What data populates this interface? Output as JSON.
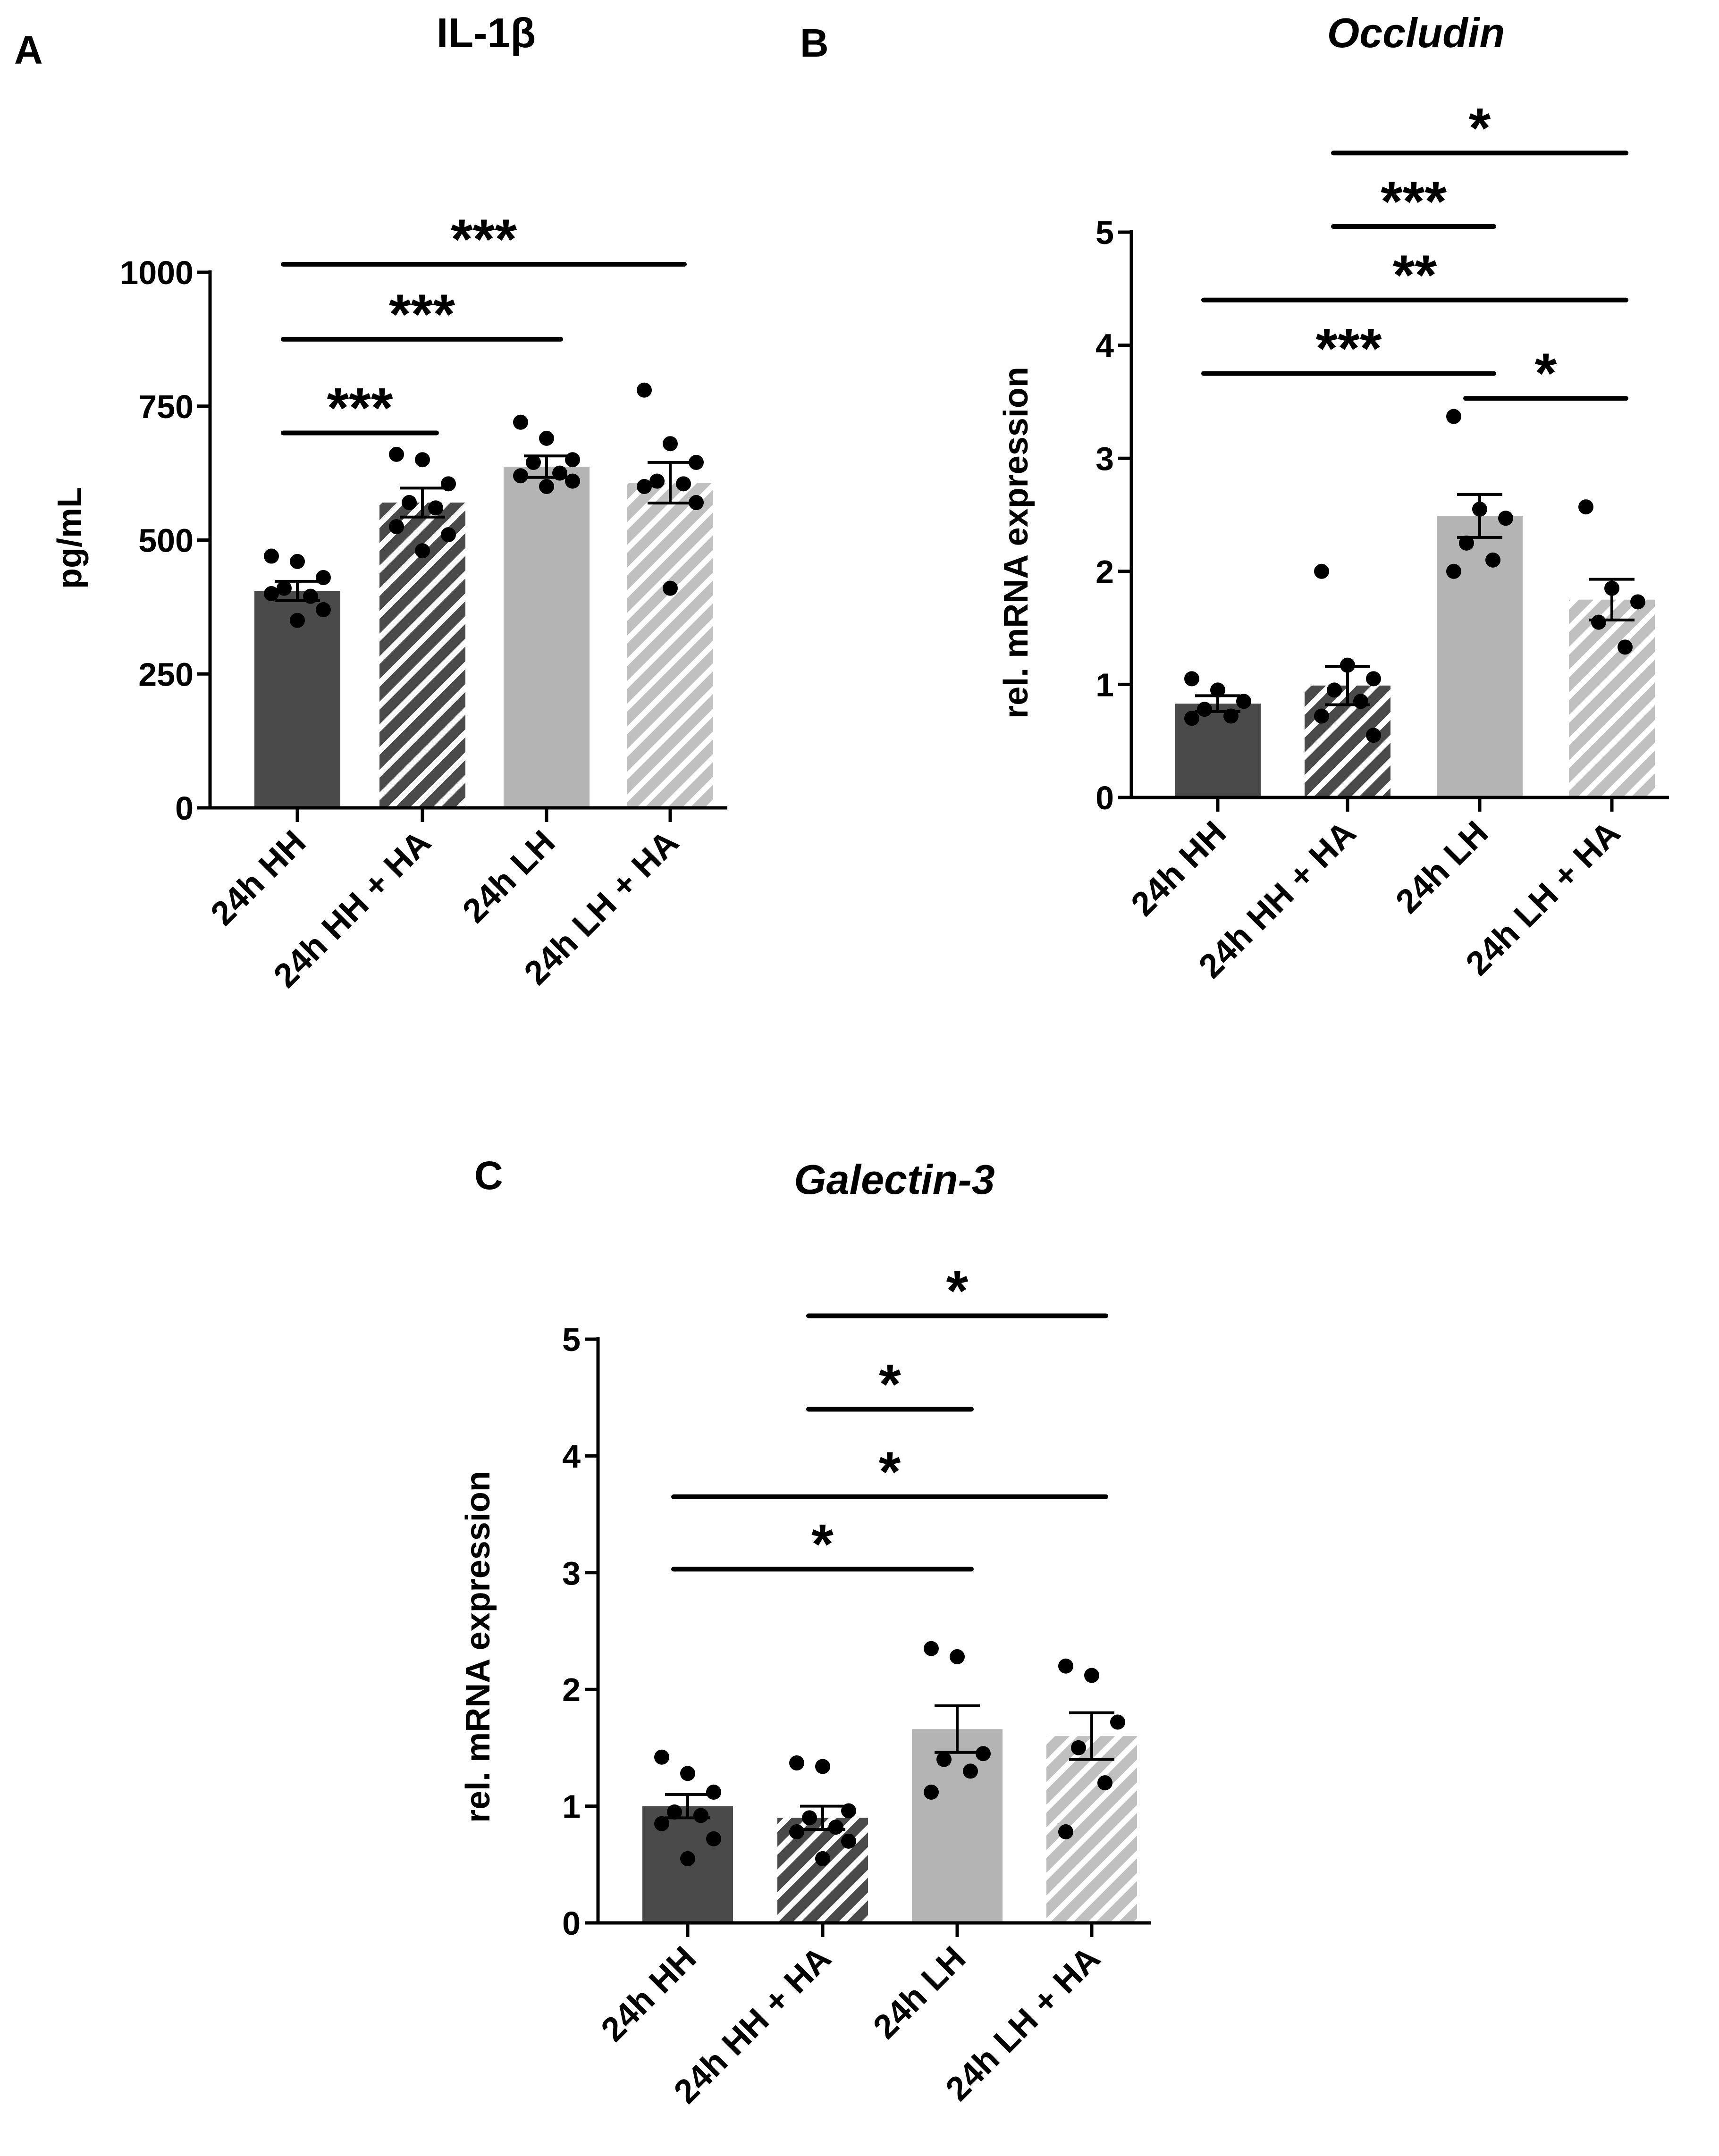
{
  "colors": {
    "hh": "#4a4a4a",
    "hh_ha_stripe": "#4a4a4a",
    "lh": "#b4b4b4",
    "lh_ha_stripe": "#c0c0c0",
    "ink": "#000000",
    "background": "#ffffff"
  },
  "chart_data": [
    {
      "panel": "A",
      "type": "bar",
      "title": "IL-1β",
      "title_italic": false,
      "xlabel": "",
      "ylabel": "pg/mL",
      "ylim": [
        0,
        1000
      ],
      "yticks": [
        0,
        250,
        500,
        750,
        1000
      ],
      "categories": [
        "24h HH",
        "24h HH + HA",
        "24h LH",
        "24h LH + HA"
      ],
      "fills": [
        "solid-dark",
        "hatched-dark",
        "solid-light",
        "hatched-light"
      ],
      "values": [
        405,
        570,
        637,
        607
      ],
      "sem": [
        18,
        27,
        20,
        38
      ],
      "points": [
        [
          470,
          460,
          430,
          410,
          395,
          400,
          370,
          350
        ],
        [
          660,
          650,
          605,
          570,
          560,
          525,
          510,
          480
        ],
        [
          720,
          690,
          650,
          645,
          625,
          620,
          610,
          600
        ],
        [
          780,
          680,
          645,
          610,
          605,
          600,
          570,
          410
        ]
      ],
      "significance": [
        {
          "from": 0,
          "to": 1,
          "label": "***",
          "y": 700
        },
        {
          "from": 0,
          "to": 2,
          "label": "***",
          "y": 875
        },
        {
          "from": 0,
          "to": 3,
          "label": "***",
          "y": 1015
        }
      ]
    },
    {
      "panel": "B",
      "type": "bar",
      "title": "Occludin",
      "title_italic": true,
      "xlabel": "",
      "ylabel": "rel. mRNA expression",
      "ylim": [
        0,
        5
      ],
      "yticks": [
        0,
        1,
        2,
        3,
        4,
        5
      ],
      "categories": [
        "24h HH",
        "24h HH + HA",
        "24h LH",
        "24h LH + HA"
      ],
      "fills": [
        "solid-dark",
        "hatched-dark",
        "solid-light",
        "hatched-light"
      ],
      "values": [
        0.83,
        0.99,
        2.49,
        1.75
      ],
      "sem": [
        0.07,
        0.17,
        0.19,
        0.18
      ],
      "points": [
        [
          1.05,
          0.95,
          0.85,
          0.78,
          0.72,
          0.7
        ],
        [
          2.0,
          1.17,
          1.05,
          0.95,
          0.85,
          0.72,
          0.55
        ],
        [
          3.37,
          2.55,
          2.47,
          2.25,
          2.1,
          2.0
        ],
        [
          2.57,
          1.85,
          1.73,
          1.55,
          1.33
        ]
      ],
      "significance": [
        {
          "from": 0,
          "to": 2,
          "label": "***",
          "y": 3.75
        },
        {
          "from": 2,
          "to": 3,
          "label": "*",
          "y": 3.53
        },
        {
          "from": 0,
          "to": 3,
          "label": "**",
          "y": 4.4
        },
        {
          "from": 1,
          "to": 2,
          "label": "***",
          "y": 5.05
        },
        {
          "from": 1,
          "to": 3,
          "label": "*",
          "y": 5.7
        }
      ]
    },
    {
      "panel": "C",
      "type": "bar",
      "title": "Galectin-3",
      "title_italic": true,
      "xlabel": "",
      "ylabel": "rel. mRNA expression",
      "ylim": [
        0,
        5
      ],
      "yticks": [
        0,
        1,
        2,
        3,
        4,
        5
      ],
      "categories": [
        "24h HH",
        "24h HH + HA",
        "24h LH",
        "24h LH + HA"
      ],
      "fills": [
        "solid-dark",
        "hatched-dark",
        "solid-light",
        "hatched-light"
      ],
      "values": [
        1.0,
        0.9,
        1.66,
        1.6
      ],
      "sem": [
        0.1,
        0.1,
        0.2,
        0.2
      ],
      "points": [
        [
          1.42,
          1.28,
          1.12,
          0.95,
          0.92,
          0.85,
          0.72,
          0.55
        ],
        [
          1.37,
          1.34,
          0.96,
          0.9,
          0.82,
          0.78,
          0.7,
          0.55
        ],
        [
          2.35,
          2.28,
          1.45,
          1.4,
          1.3,
          1.12
        ],
        [
          2.2,
          2.12,
          1.72,
          1.5,
          1.2,
          0.78
        ]
      ],
      "significance": [
        {
          "from": 0,
          "to": 2,
          "label": "*",
          "y": 3.03
        },
        {
          "from": 0,
          "to": 3,
          "label": "*",
          "y": 3.65
        },
        {
          "from": 1,
          "to": 2,
          "label": "*",
          "y": 4.4
        },
        {
          "from": 1,
          "to": 3,
          "label": "*",
          "y": 5.2
        }
      ]
    }
  ]
}
